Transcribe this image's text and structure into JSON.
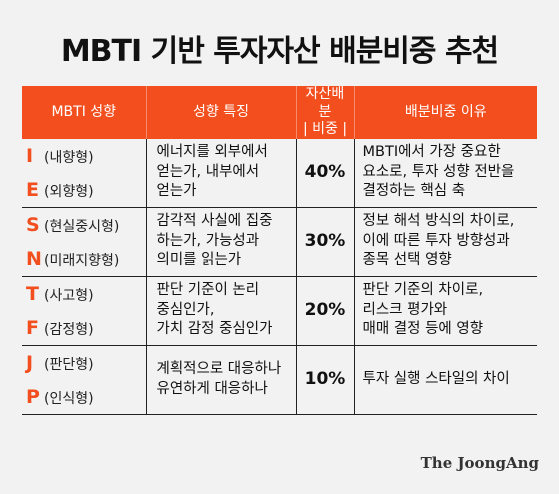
{
  "title": "MBTI 기반 투자자산 배분비중 추천",
  "headers": {
    "type": "MBTI 성향",
    "traits": "성향 특징",
    "ratio_line1": "자산배분",
    "ratio_line2": "비중",
    "reason": "배분비중 이유"
  },
  "rows": [
    {
      "type1_letter": "I",
      "type1_name": "(내향형)",
      "type2_letter": "E",
      "type2_name": "(외향형)",
      "traits": [
        "에너지를 외부에서",
        "얻는가, 내부에서",
        "얻는가"
      ],
      "ratio": "40%",
      "reason": [
        "MBTI에서 가장 중요한",
        "요소로, 투자 성향 전반을",
        "결정하는 핵심 축"
      ]
    },
    {
      "type1_letter": "S",
      "type1_name": "(현실중시형)",
      "type2_letter": "N",
      "type2_name": "(미래지향형)",
      "traits": [
        "감각적 사실에 집중",
        "하는가, 가능성과",
        "의미를 읽는가"
      ],
      "ratio": "30%",
      "reason": [
        "정보 해석 방식의 차이로,",
        "이에 따른 투자 방향성과",
        "종목 선택 영향"
      ]
    },
    {
      "type1_letter": "T",
      "type1_name": "(사고형)",
      "type2_letter": "F",
      "type2_name": "(감정형)",
      "traits": [
        "판단 기준이 논리",
        "중심인가,",
        "가치 감정 중심인가"
      ],
      "ratio": "20%",
      "reason": [
        "판단 기준의 차이로,",
        "리스크 평가와",
        "매매 결정 등에 영향"
      ]
    },
    {
      "type1_letter": "J",
      "type1_name": "(판단형)",
      "type2_letter": "P",
      "type2_name": "(인식형)",
      "traits": [
        "계획적으로 대응하나",
        "유연하게 대응하나"
      ],
      "ratio": "10%",
      "reason": [
        "투자 실행 스타일의 차이"
      ]
    }
  ],
  "logo": "The JoongAng"
}
